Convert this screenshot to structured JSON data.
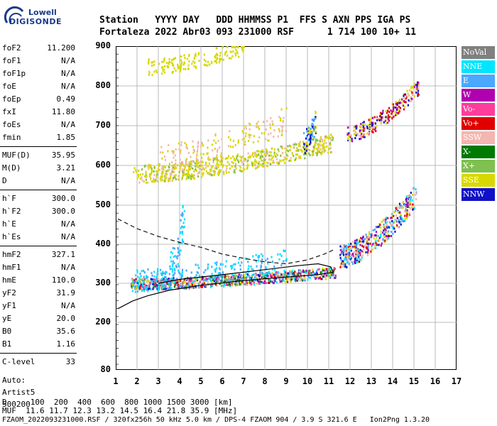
{
  "logo": {
    "top": "Lowell",
    "bottom": "DIGISONDE"
  },
  "header": {
    "line1": "Station   YYYY DAY   DDD HHMMSS P1  FFS S AXN PPS IGA PS",
    "line2": "Fortaleza 2022 Abr03 093 231000 RSF      1 714 100 10+ 11"
  },
  "params": [
    {
      "name": "foF2",
      "value": "11.200"
    },
    {
      "name": "foF1",
      "value": "N/A"
    },
    {
      "name": "foF1p",
      "value": "N/A"
    },
    {
      "name": "foE",
      "value": "N/A"
    },
    {
      "name": "foEp",
      "value": "0.49"
    },
    {
      "name": "fxI",
      "value": "11.80"
    },
    {
      "name": "foEs",
      "value": "N/A"
    },
    {
      "name": "fmin",
      "value": "1.85"
    },
    {
      "name": "MUF(D)",
      "value": "35.95"
    },
    {
      "name": "M(D)",
      "value": "3.21"
    },
    {
      "name": "D",
      "value": "N/A"
    },
    {
      "name": "h`F",
      "value": "300.0"
    },
    {
      "name": "h`F2",
      "value": "300.0"
    },
    {
      "name": "h`E",
      "value": "N/A"
    },
    {
      "name": "h`Es",
      "value": "N/A"
    },
    {
      "name": "hmF2",
      "value": "327.1"
    },
    {
      "name": "hmF1",
      "value": "N/A"
    },
    {
      "name": "hmE",
      "value": "110.0"
    },
    {
      "name": "yF2",
      "value": "31.9"
    },
    {
      "name": "yF1",
      "value": "N/A"
    },
    {
      "name": "yE",
      "value": "20.0"
    },
    {
      "name": "B0",
      "value": "35.6"
    },
    {
      "name": "B1",
      "value": "1.16"
    },
    {
      "name": "C-level",
      "value": "33"
    }
  ],
  "autoscaling": {
    "line1": "Auto:",
    "line2": "Artist5",
    "line3": "500200"
  },
  "legend": [
    {
      "label": "NoVal",
      "color": "#808080"
    },
    {
      "label": "NNE",
      "color": "#00e5ff"
    },
    {
      "label": "E",
      "color": "#4aa8ff"
    },
    {
      "label": "W",
      "color": "#b000b0"
    },
    {
      "label": "Vo-",
      "color": "#ff3d9b"
    },
    {
      "label": "Vo+",
      "color": "#e00000"
    },
    {
      "label": "SSW",
      "color": "#f4b6b0"
    },
    {
      "label": "X-",
      "color": "#007a00"
    },
    {
      "label": "X+",
      "color": "#7fc050"
    },
    {
      "label": "SSE",
      "color": "#d8d800"
    },
    {
      "label": "NNW",
      "color": "#1010c8"
    }
  ],
  "chart_data": {
    "type": "scatter",
    "xlabel": "",
    "ylabel": "",
    "xlim": [
      1,
      17
    ],
    "ylim": [
      80,
      900
    ],
    "x_ticks": [
      "1",
      "2",
      "3",
      "4",
      "5",
      "6",
      "7",
      "8",
      "9",
      "10",
      "11",
      "12",
      "13",
      "14",
      "15",
      "16",
      "17"
    ],
    "y_ticks": [
      "900",
      "800",
      "700",
      "600",
      "500",
      "400",
      "300",
      "200",
      "80"
    ],
    "grid": true,
    "profile_solid": [
      [
        1.1,
        235
      ],
      [
        1.8,
        255
      ],
      [
        2.5,
        268
      ],
      [
        3.5,
        282
      ],
      [
        5,
        295
      ],
      [
        7,
        307
      ],
      [
        9,
        316
      ],
      [
        10.5,
        322
      ],
      [
        11.2,
        328
      ],
      [
        11.1,
        342
      ],
      [
        10.5,
        350
      ],
      [
        9.5,
        345
      ],
      [
        8,
        335
      ],
      [
        6,
        322
      ],
      [
        4,
        310
      ],
      [
        3,
        300
      ]
    ],
    "profile_dashed": [
      [
        1.1,
        465
      ],
      [
        2,
        440
      ],
      [
        3,
        420
      ],
      [
        4,
        405
      ],
      [
        5,
        392
      ],
      [
        6,
        375
      ],
      [
        7,
        364
      ],
      [
        8,
        355
      ],
      [
        9,
        350
      ],
      [
        10,
        360
      ],
      [
        10.8,
        375
      ],
      [
        11.2,
        385
      ]
    ]
  },
  "footer": {
    "line1": "D     100  200  400  600  800 1000 1500 3000 [km]",
    "line2": "MUF  11.6 11.7 12.3 13.2 14.5 16.4 21.8 35.9 [MHz]",
    "line3": "FZAOM_2022093231000.RSF / 320fx256h 50 kHz 5.0 km / DPS-4 FZAOM 904 / 3.9 S 321.6 E   Ion2Png 1.3.20"
  }
}
